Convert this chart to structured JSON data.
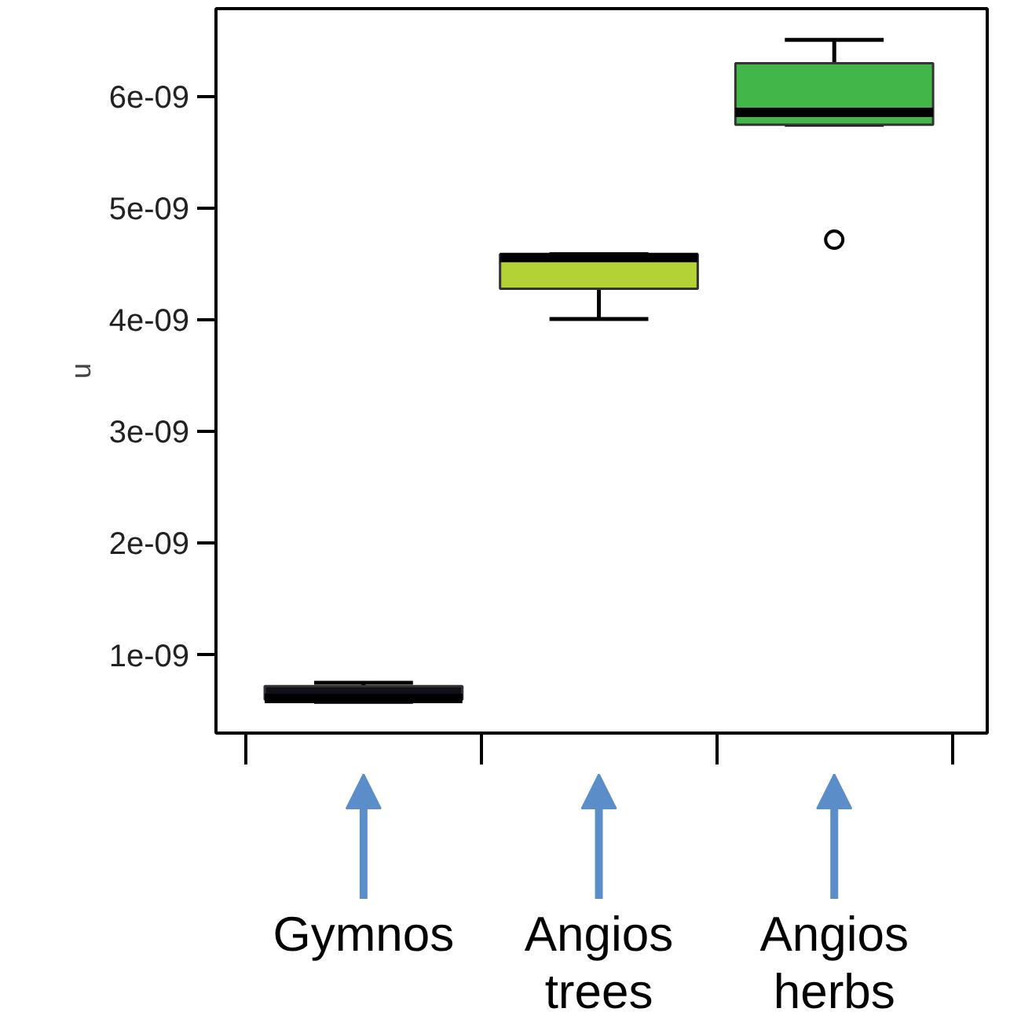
{
  "chart_data": {
    "type": "box",
    "ylabel": "u",
    "categories": [
      "Gymnos",
      "Angios\ntrees",
      "Angios\nherbs"
    ],
    "colors": [
      "#101018",
      "#b2d235",
      "#43b649"
    ],
    "boxes": [
      {
        "low": 5.8e-10,
        "q1": 6e-10,
        "median": 6.1e-10,
        "q3": 7.2e-10,
        "high": 7.5e-10
      },
      {
        "low": 4.01e-09,
        "q1": 4.28e-09,
        "median": 4.56e-09,
        "q3": 4.59e-09,
        "high": 4.59e-09
      },
      {
        "low": 5.75e-09,
        "q1": 5.75e-09,
        "median": 5.86e-09,
        "q3": 6.3e-09,
        "high": 6.51e-09,
        "outliers": [
          4.72e-09
        ]
      }
    ],
    "ylim": [
      3e-10,
      6.79e-09
    ],
    "yticks": [
      {
        "value": 1e-09,
        "label": "1e-09"
      },
      {
        "value": 2e-09,
        "label": "2e-09"
      },
      {
        "value": 3e-09,
        "label": "3e-09"
      },
      {
        "value": 4e-09,
        "label": "4e-09"
      },
      {
        "value": 5e-09,
        "label": "5e-09"
      },
      {
        "value": 6e-09,
        "label": "6e-09"
      }
    ],
    "tick_labels": "y",
    "grid": false
  }
}
